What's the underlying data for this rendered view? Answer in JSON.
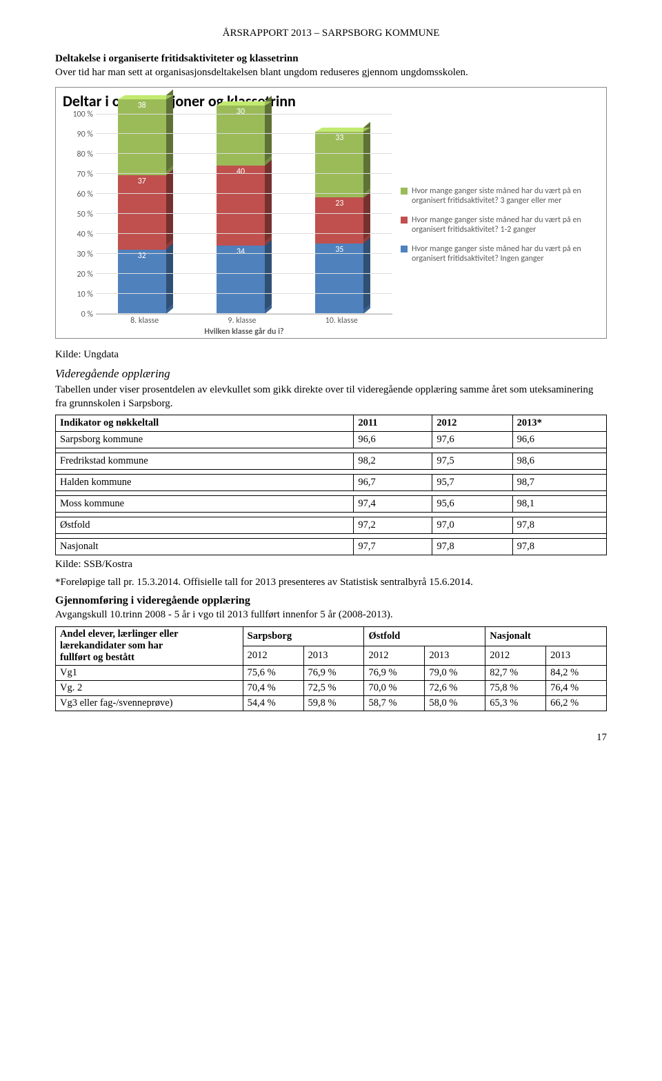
{
  "header": "ÅRSRAPPORT 2013 – SARPSBORG KOMMUNE",
  "section1": {
    "title": "Deltakelse i organiserte fritidsaktiviteter og klassetrinn",
    "text": "Over tid har man sett at organisasjonsdeltakelsen blant ungdom reduseres gjennom ungdomsskolen."
  },
  "chart": {
    "title": "Deltar i organisasjoner og klassetrinn",
    "y_ticks": [
      "0 %",
      "10 %",
      "20 %",
      "30 %",
      "40 %",
      "50 %",
      "60 %",
      "70 %",
      "80 %",
      "90 %",
      "100 %"
    ],
    "x_title": "Hvilken klasse går du i?",
    "categories": [
      "8. klasse",
      "9. klasse",
      "10. klasse"
    ],
    "series_colors": {
      "green": "#9bbb59",
      "red": "#c0504d",
      "blue": "#4f81bd"
    },
    "legend": [
      {
        "color": "#9bbb59",
        "label": "Hvor mange ganger siste måned har du vært på en organisert fritidsaktivitet? 3 ganger eller mer"
      },
      {
        "color": "#c0504d",
        "label": "Hvor mange ganger siste måned har du vært på en organisert fritidsaktivitet? 1-2 ganger"
      },
      {
        "color": "#4f81bd",
        "label": "Hvor mange ganger siste måned har du vært på en organisert fritidsaktivitet? Ingen ganger"
      }
    ],
    "bars": [
      {
        "green": 38,
        "red": 37,
        "blue": 32
      },
      {
        "green": 30,
        "red": 40,
        "blue": 34
      },
      {
        "green": 33,
        "red": 23,
        "blue": 35
      }
    ]
  },
  "kilde_ungdata": "Kilde: Ungdata",
  "section2": {
    "title": "Videregående opplæring",
    "text": "Tabellen under viser prosentdelen av elevkullet som gikk direkte over til videregående opplæring samme året som uteksaminering fra grunnskolen i Sarpsborg."
  },
  "indicator_table": {
    "headers": [
      "Indikator og nøkkeltall",
      "2011",
      "2012",
      "2013*"
    ],
    "rows": [
      [
        "Sarpsborg kommune",
        "96,6",
        "97,6",
        "96,6"
      ],
      [
        "Fredrikstad kommune",
        "98,2",
        "97,5",
        "98,6"
      ],
      [
        "Halden kommune",
        "96,7",
        "95,7",
        "98,7"
      ],
      [
        "Moss kommune",
        "97,4",
        "95,6",
        "98,1"
      ],
      [
        "Østfold",
        "97,2",
        "97,0",
        "97,8"
      ],
      [
        "Nasjonalt",
        "97,7",
        "97,8",
        "97,8"
      ]
    ]
  },
  "kilde_ssb": "Kilde: SSB/Kostra",
  "forelopige": "*Foreløpige tall pr. 15.3.2014. Offisielle tall for 2013 presenteres av Statistisk sentralbyrå 15.6.2014.",
  "section3": {
    "title": "Gjennomføring i videregående opplæring",
    "text": "Avgangskull 10.trinn 2008 - 5 år i vgo til 2013 fullført innenfor 5 år (2008-2013)."
  },
  "andel_table": {
    "top_header": "Andel elever, lærlinger eller lærekandidater som har fullført og bestått",
    "group_headers": [
      "Sarpsborg",
      "Østfold",
      "Nasjonalt"
    ],
    "year_headers": [
      "2012",
      "2013",
      "2012",
      "2013",
      "2012",
      "2013"
    ],
    "rows": [
      [
        "Vg1",
        "75,6 %",
        "76,9 %",
        "76,9 %",
        "79,0 %",
        "82,7 %",
        "84,2 %"
      ],
      [
        "Vg. 2",
        "70,4 %",
        "72,5 %",
        "70,0 %",
        "72,6 %",
        "75,8 %",
        "76,4 %"
      ],
      [
        "Vg3 eller fag-/svenneprøve)",
        "54,4 %",
        "59,8 %",
        "58,7 %",
        "58,0 %",
        "65,3 %",
        "66,2 %"
      ]
    ]
  },
  "page_number": "17"
}
